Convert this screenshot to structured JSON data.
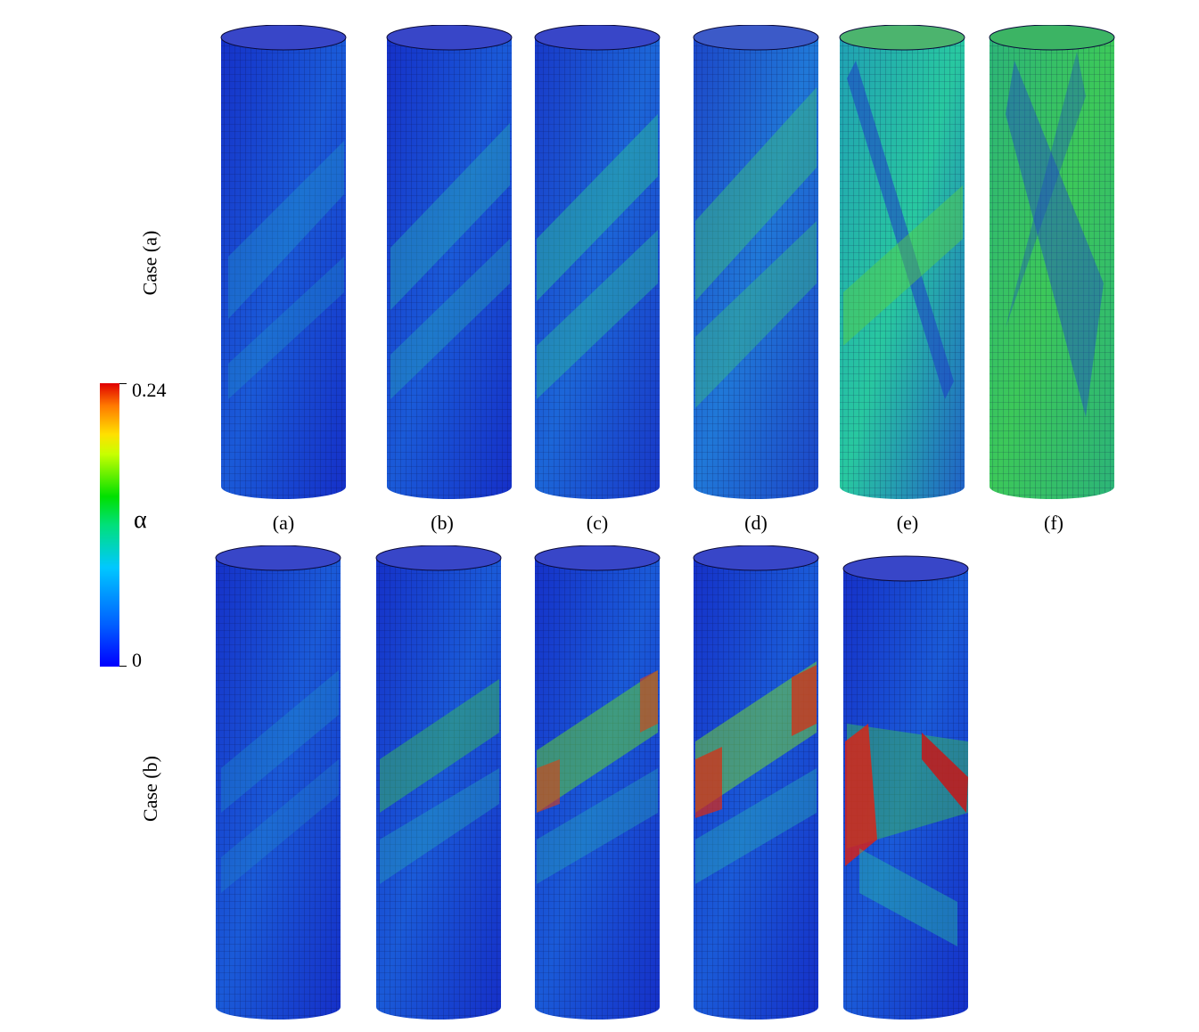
{
  "row_labels": [
    "Case (a)",
    "Case (b)"
  ],
  "sub_labels": [
    "(a)",
    "(b)",
    "(c)",
    "(d)",
    "(e)",
    "(f)"
  ],
  "colorbar": {
    "symbol": "α",
    "max_label": "0.24",
    "min_label": "0",
    "colors": [
      "#0000ff",
      "#00c8ff",
      "#00e000",
      "#ffe000",
      "#e00000"
    ]
  }
}
